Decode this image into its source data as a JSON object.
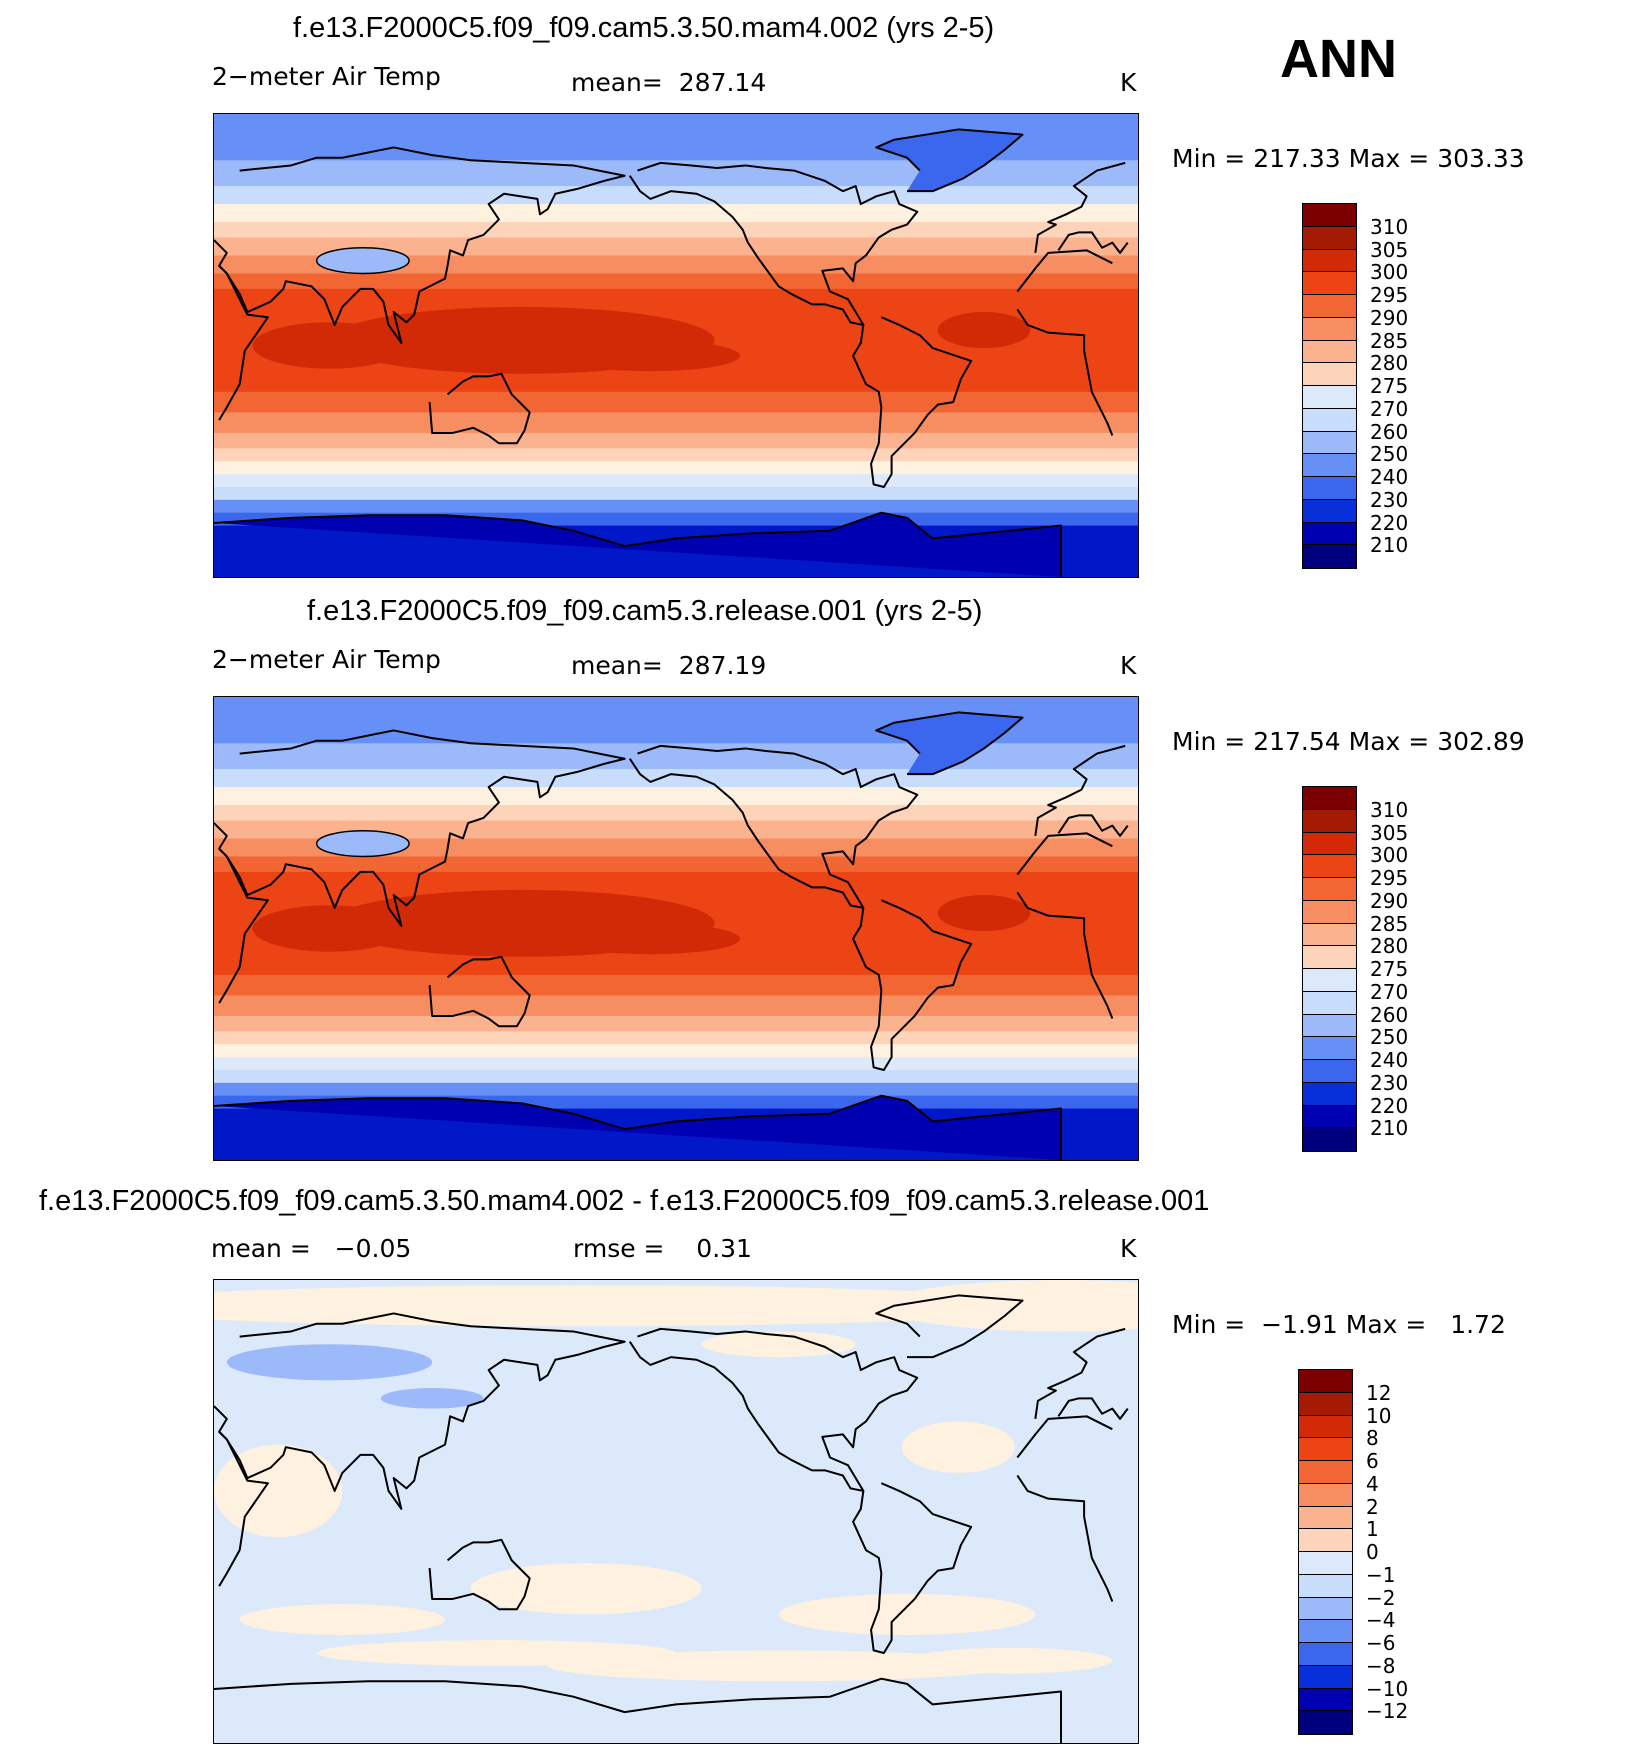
{
  "season": "ANN",
  "colors": {
    "warm_scale": [
      "#00007f",
      "#0000b3",
      "#0018c8",
      "#0730db",
      "#1a4ae6",
      "#3a67ee",
      "#6690f5",
      "#9cbaf9",
      "#c8dcfb",
      "#dce9fb",
      "#fff1df",
      "#fdd3b9",
      "#fbb38f",
      "#f78e62",
      "#f26634",
      "#ec4415",
      "#d22a07",
      "#a41a02",
      "#7d0000"
    ],
    "diff_scale": [
      "#00007f",
      "#0000b3",
      "#0018c8",
      "#0730db",
      "#1a4ae6",
      "#3a67ee",
      "#6690f5",
      "#9cbaf9",
      "#c8dcfb",
      "#dce9fb",
      "#fff1df",
      "#fdd3b9",
      "#fbb38f",
      "#f78e62",
      "#f26634",
      "#ec4415",
      "#d22a07",
      "#a41a02",
      "#7d0000"
    ],
    "coast": "#000000"
  },
  "chart_data": [
    {
      "type": "contour-map",
      "title": "f.e13.F2000C5.f09_f09.cam5.3.50.mam4.002 (yrs 2-5)",
      "variable": "2−meter Air Temp",
      "stat_label": "mean=",
      "stat_value": "287.14",
      "units": "K",
      "min_label": "Min  =",
      "min_value": "217.33",
      "max_label": "Max  =",
      "max_value": "303.33",
      "colorbar_labels": [
        "310",
        "305",
        "300",
        "295",
        "290",
        "285",
        "280",
        "275",
        "270",
        "260",
        "250",
        "240",
        "230",
        "220",
        "210"
      ]
    },
    {
      "type": "contour-map",
      "title": "f.e13.F2000C5.f09_f09.cam5.3.release.001 (yrs 2-5)",
      "variable": "2−meter Air Temp",
      "stat_label": "mean=",
      "stat_value": "287.19",
      "units": "K",
      "min_label": "Min  =",
      "min_value": "217.54",
      "max_label": "Max  =",
      "max_value": "302.89",
      "colorbar_labels": [
        "310",
        "305",
        "300",
        "295",
        "290",
        "285",
        "280",
        "275",
        "270",
        "260",
        "250",
        "240",
        "230",
        "220",
        "210"
      ]
    },
    {
      "type": "contour-map-difference",
      "title": "f.e13.F2000C5.f09_f09.cam5.3.50.mam4.002 - f.e13.F2000C5.f09_f09.cam5.3.release.001",
      "stat_label": "mean =",
      "stat_value": "−0.05",
      "rmse_label": "rmse =",
      "rmse_value": "0.31",
      "units": "K",
      "min_label": "Min  =",
      "min_value": "−1.91",
      "max_label": "Max  =",
      "max_value": "1.72",
      "colorbar_labels": [
        "12",
        "10",
        "8",
        "6",
        "4",
        "2",
        "1",
        "0",
        "−1",
        "−2",
        "−4",
        "−6",
        "−8",
        "−10",
        "−12"
      ]
    }
  ]
}
